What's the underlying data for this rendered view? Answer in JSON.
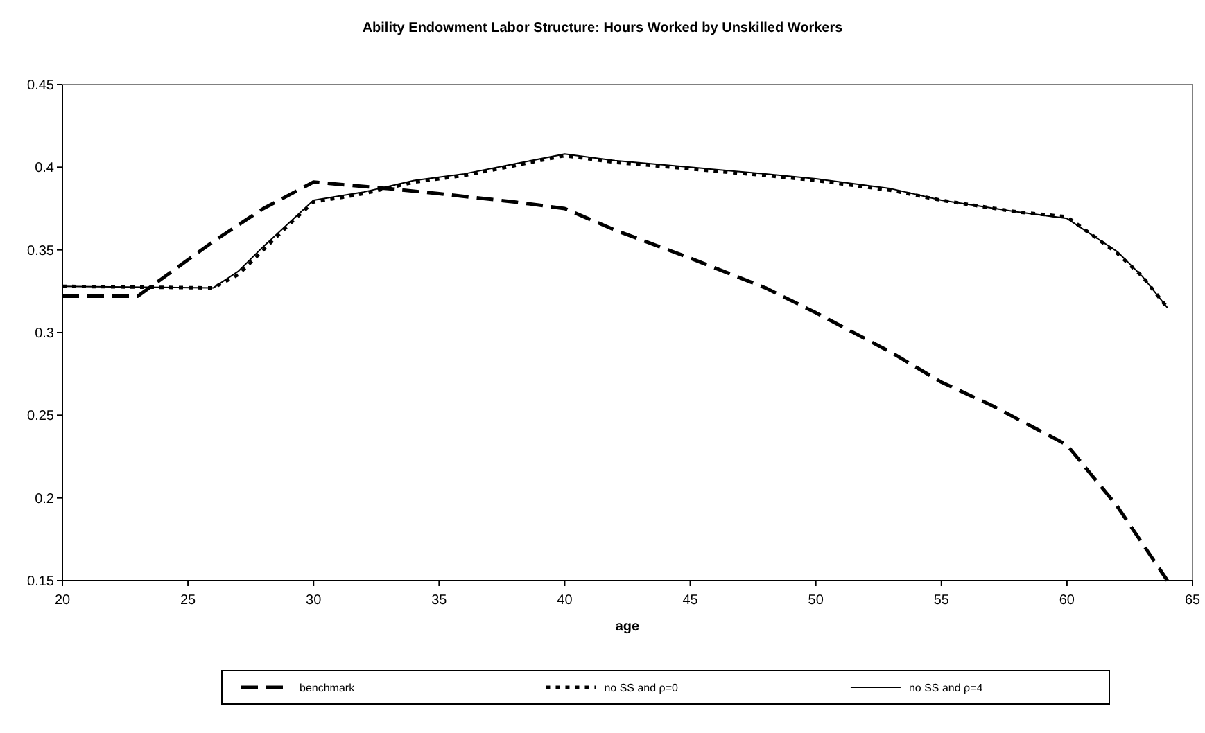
{
  "chart_data": {
    "type": "line",
    "title": "Ability Endowment Labor Structure: Hours Worked by Unskilled Workers",
    "xlabel": "age",
    "xlim": [
      20,
      65
    ],
    "xticks": [
      20,
      25,
      30,
      35,
      40,
      45,
      50,
      55,
      60,
      65
    ],
    "ylim": [
      0.15,
      0.45
    ],
    "yticks": [
      0.15,
      0.2,
      0.25,
      0.3,
      0.35,
      0.4,
      0.45
    ],
    "grid": false,
    "legend": "bottom",
    "marker": "none",
    "series": [
      {
        "name": "benchmark",
        "color": "#000000",
        "line_style": "dashed",
        "x": [
          20,
          23,
          24,
          26,
          28,
          30,
          33,
          35,
          38,
          40,
          42,
          45,
          48,
          50,
          53,
          55,
          57,
          58,
          60,
          62,
          64
        ],
        "values": [
          0.322,
          0.322,
          0.333,
          0.355,
          0.375,
          0.391,
          0.387,
          0.384,
          0.379,
          0.375,
          0.362,
          0.345,
          0.327,
          0.312,
          0.288,
          0.27,
          0.256,
          0.248,
          0.232,
          0.195,
          0.15
        ]
      },
      {
        "name": "no SS and ρ=0",
        "color": "#000000",
        "line_style": "dotted",
        "x": [
          20,
          26,
          27,
          28,
          29,
          30,
          32,
          34,
          36,
          38,
          40,
          42,
          45,
          48,
          50,
          53,
          55,
          58,
          60,
          62,
          63,
          64
        ],
        "values": [
          0.328,
          0.327,
          0.335,
          0.35,
          0.365,
          0.379,
          0.384,
          0.391,
          0.395,
          0.401,
          0.407,
          0.403,
          0.399,
          0.395,
          0.392,
          0.386,
          0.38,
          0.373,
          0.37,
          0.348,
          0.334,
          0.315
        ]
      },
      {
        "name": "no SS and ρ=4",
        "color": "#000000",
        "line_style": "solid",
        "x": [
          20,
          26,
          27,
          28,
          29,
          30,
          32,
          34,
          36,
          38,
          40,
          42,
          45,
          48,
          50,
          53,
          55,
          58,
          60,
          62,
          63,
          64
        ],
        "values": [
          0.328,
          0.327,
          0.337,
          0.352,
          0.366,
          0.38,
          0.385,
          0.392,
          0.396,
          0.402,
          0.408,
          0.404,
          0.4,
          0.396,
          0.393,
          0.387,
          0.38,
          0.373,
          0.369,
          0.349,
          0.334,
          0.315
        ]
      }
    ]
  }
}
